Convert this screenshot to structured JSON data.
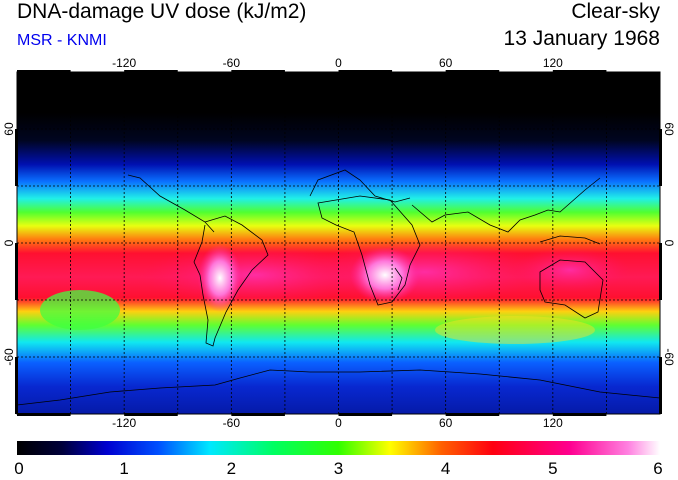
{
  "header": {
    "title": "DNA-damage UV dose (kJ/m2)",
    "source": "MSR - KNMI",
    "condition": "Clear-sky",
    "date": "13 January 1968"
  },
  "map": {
    "projection": "equirectangular",
    "lon_range": [
      -180,
      180
    ],
    "lat_range": [
      -90,
      90
    ],
    "lon_ticks": [
      -120,
      -60,
      0,
      60,
      120
    ],
    "lat_ticks": [
      60,
      0,
      -60
    ],
    "gridline_style": "dashed black"
  },
  "colorbar": {
    "min": 0,
    "max": 6,
    "labels": [
      "0",
      "1",
      "2",
      "3",
      "4",
      "5",
      "6"
    ],
    "colors": [
      "#000000",
      "#0000e0",
      "#00ffff",
      "#00ff00",
      "#ffff00",
      "#ff2020",
      "#ff00c8",
      "#ffffff"
    ]
  }
}
